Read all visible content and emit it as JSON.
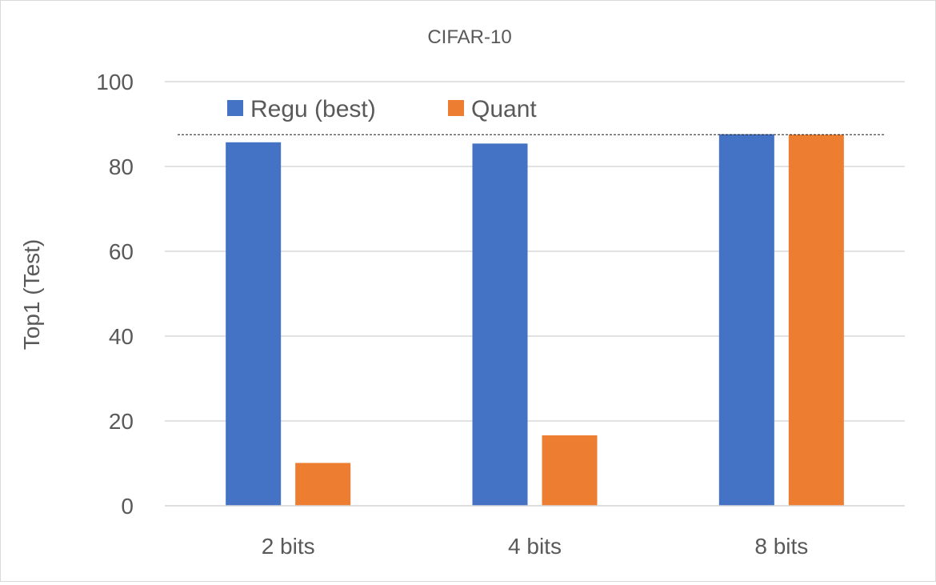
{
  "chart_data": {
    "type": "bar",
    "title": "CIFAR-10",
    "xlabel": "",
    "ylabel": "Top1 (Test)",
    "ylim": [
      0,
      100
    ],
    "yticks": [
      0,
      20,
      40,
      60,
      80,
      100
    ],
    "categories": [
      "2 bits",
      "4 bits",
      "8 bits"
    ],
    "series": [
      {
        "name": "Regu (best)",
        "color": "#4472c4",
        "values": [
          85.7,
          85.4,
          87.6
        ]
      },
      {
        "name": "Quant",
        "color": "#ed7d31",
        "values": [
          10.1,
          16.6,
          87.5
        ]
      }
    ],
    "reference_line": {
      "value": 87.5,
      "style": "dashed"
    },
    "grid": true,
    "legend_position": "top-left"
  }
}
